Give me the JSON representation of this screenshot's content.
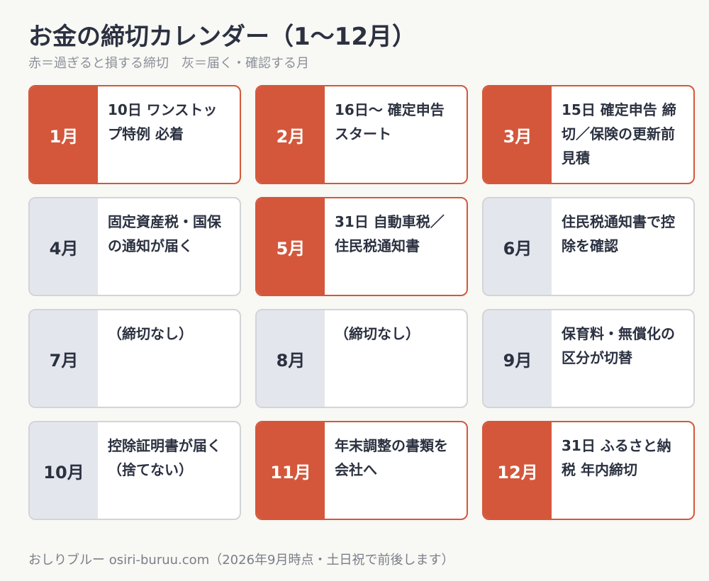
{
  "header": {
    "title": "お金の締切カレンダー（1〜12月）",
    "subtitle": "赤＝過ぎると損する締切　灰＝届く・確認する月"
  },
  "colors": {
    "deadline": "#d4573b",
    "notice": "#e3e6ec",
    "text": "#2b3140",
    "background": "#f8f8f4"
  },
  "months": [
    {
      "label": "1月",
      "text": "10日 ワンストップ特例 必着",
      "type": "deadline"
    },
    {
      "label": "2月",
      "text": "16日〜 確定申告スタート",
      "type": "deadline"
    },
    {
      "label": "3月",
      "text": "15日 確定申告 締切／保険の更新前見積",
      "type": "deadline"
    },
    {
      "label": "4月",
      "text": "固定資産税・国保の通知が届く",
      "type": "notice"
    },
    {
      "label": "5月",
      "text": "31日 自動車税／住民税通知書",
      "type": "deadline"
    },
    {
      "label": "6月",
      "text": "住民税通知書で控除を確認",
      "type": "notice"
    },
    {
      "label": "7月",
      "text": "（締切なし）",
      "type": "notice"
    },
    {
      "label": "8月",
      "text": "（締切なし）",
      "type": "notice"
    },
    {
      "label": "9月",
      "text": "保育料・無償化の区分が切替",
      "type": "notice"
    },
    {
      "label": "10月",
      "text": "控除証明書が届く（捨てない）",
      "type": "notice"
    },
    {
      "label": "11月",
      "text": "年末調整の書類を会社へ",
      "type": "deadline"
    },
    {
      "label": "12月",
      "text": "31日 ふるさと納税 年内締切",
      "type": "deadline"
    }
  ],
  "footer": {
    "text": "おしりブルー osiri-buruu.com（2026年9月時点・土日祝で前後します）"
  }
}
